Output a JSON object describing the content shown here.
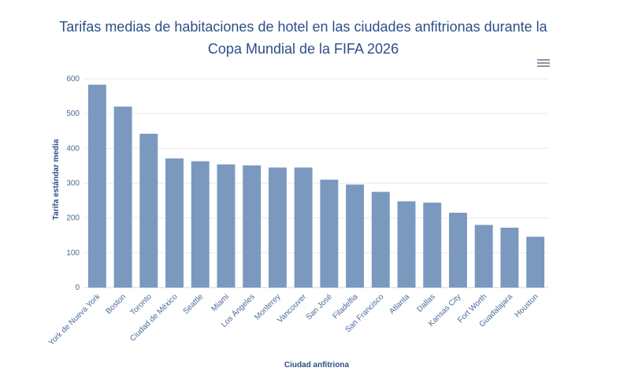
{
  "chart_data": {
    "type": "bar",
    "title": "Tarifas medias de habitaciones de hotel en las ciudades anfitrionas durante la Copa Mundial de la FIFA 2026",
    "xlabel": "Ciudad anfitriona",
    "ylabel": "Tarifa estándar media",
    "categories": [
      "York de Nueva York",
      "Boston",
      "Toronto",
      "Ciudad de México",
      "Seattle",
      "Miami",
      "Los Ángeles",
      "Monterey",
      "Vancouver",
      "San José",
      "Filadelfia",
      "San Francisco",
      "Atlanta",
      "Dallas",
      "Kansas City",
      "Fort Worth",
      "Guadalajara",
      "Houston"
    ],
    "values": [
      583,
      520,
      442,
      371,
      363,
      354,
      351,
      345,
      345,
      310,
      296,
      275,
      248,
      244,
      215,
      180,
      172,
      146
    ],
    "ylim": [
      0,
      600
    ],
    "yticks": [
      0,
      100,
      200,
      300,
      400,
      500,
      600
    ],
    "grid": true,
    "colors": {
      "bar": "#7b98bf",
      "title": "#2b4f86",
      "grid": "#e6e9ee"
    }
  },
  "menu_icon": "hamburger-menu-icon"
}
